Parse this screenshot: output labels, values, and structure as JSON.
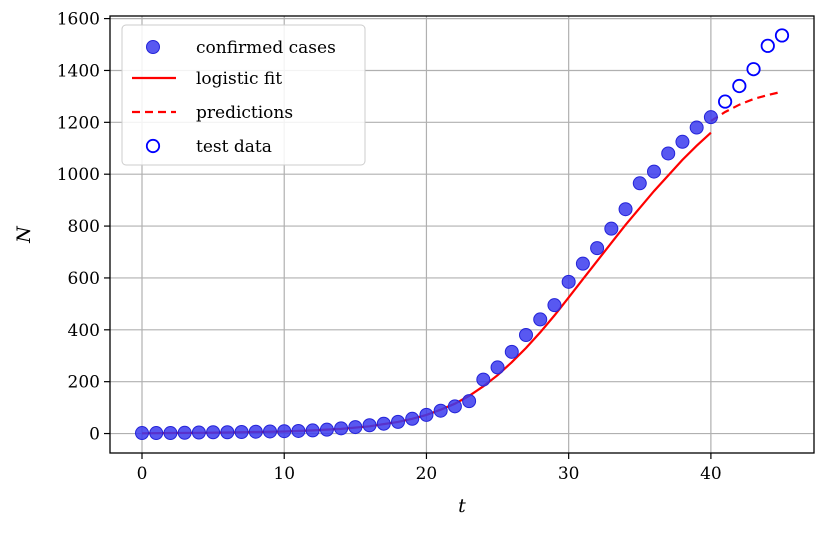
{
  "chart_data": {
    "type": "scatter",
    "xlabel": "t",
    "ylabel": "N",
    "xlim": [
      -2.25,
      47.25
    ],
    "ylim": [
      -75,
      1610
    ],
    "xticks": [
      0,
      10,
      20,
      30,
      40
    ],
    "yticks": [
      0,
      200,
      400,
      600,
      800,
      1000,
      1200,
      1400,
      1600
    ],
    "grid": true,
    "legend_position": "top-left",
    "colors": {
      "confirmed": "#3b3bef",
      "fit": "#ff0000",
      "test": "#0000ff"
    },
    "series": [
      {
        "name": "confirmed cases",
        "kind": "filled-markers",
        "x": [
          0,
          1,
          2,
          3,
          4,
          5,
          6,
          7,
          8,
          9,
          10,
          11,
          12,
          13,
          14,
          15,
          16,
          17,
          18,
          19,
          20,
          21,
          22,
          23,
          24,
          25,
          26,
          27,
          28,
          29,
          30,
          31,
          32,
          33,
          34,
          35,
          36,
          37,
          38,
          39,
          40
        ],
        "y": [
          2,
          2,
          2,
          3,
          4,
          5,
          5,
          6,
          7,
          8,
          9,
          10,
          12,
          15,
          20,
          25,
          32,
          38,
          45,
          57,
          72,
          88,
          105,
          125,
          208,
          255,
          315,
          380,
          440,
          495,
          585,
          655,
          715,
          790,
          865,
          965,
          1010,
          1080,
          1125,
          1180,
          1220
        ]
      },
      {
        "name": "logistic fit",
        "kind": "solid-line",
        "x": [
          0,
          2,
          4,
          6,
          8,
          10,
          12,
          14,
          16,
          18,
          19,
          20,
          21,
          22,
          23,
          24,
          25,
          26,
          27,
          28,
          29,
          30,
          31,
          32,
          33,
          34,
          35,
          36,
          37,
          38,
          39,
          40
        ],
        "y": [
          1,
          2,
          3,
          4,
          6,
          8,
          12,
          18,
          28,
          45,
          57,
          72,
          92,
          115,
          145,
          182,
          225,
          275,
          330,
          390,
          455,
          525,
          595,
          665,
          735,
          805,
          870,
          935,
          995,
          1055,
          1110,
          1160
        ]
      },
      {
        "name": "predictions",
        "kind": "dashed-line",
        "x": [
          40,
          41,
          42,
          43,
          44,
          45
        ],
        "y": [
          1205,
          1240,
          1268,
          1290,
          1305,
          1318
        ]
      },
      {
        "name": "test data",
        "kind": "open-markers",
        "x": [
          41,
          42,
          43,
          44,
          45
        ],
        "y": [
          1280,
          1340,
          1405,
          1495,
          1535
        ]
      }
    ]
  }
}
